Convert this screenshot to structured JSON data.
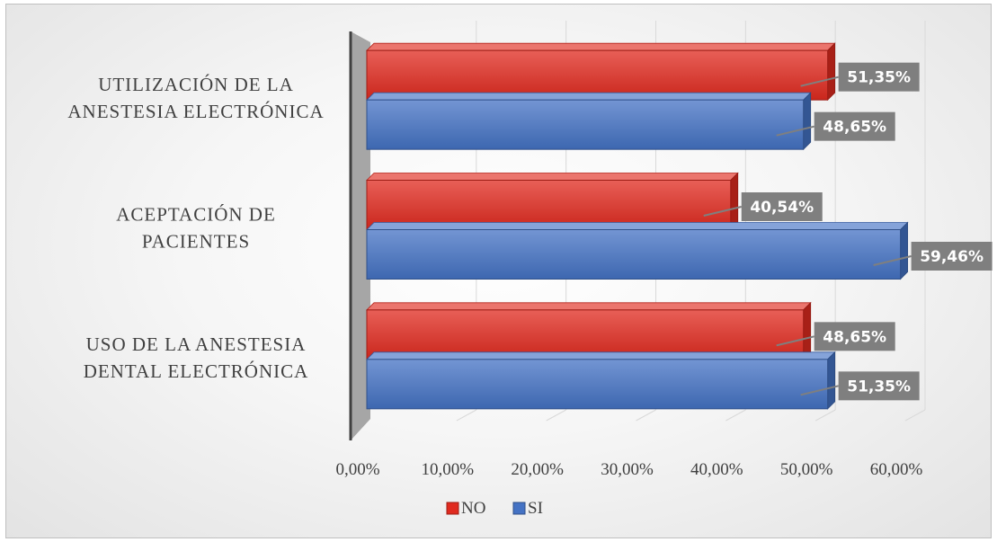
{
  "chart_data": {
    "type": "bar",
    "orientation": "horizontal",
    "style": "3d",
    "categories": [
      "USO DE LA ANESTESIA DENTAL ELECTRÓNICA",
      "ACEPTACIÓN DE PACIENTES",
      "UTILIZACIÓN DE LA ANESTESIA ELECTRÓNICA"
    ],
    "category_lines": [
      [
        "USO DE LA ANESTESIA",
        "DENTAL ELECTRÓNICA"
      ],
      [
        "ACEPTACIÓN DE",
        "PACIENTES"
      ],
      [
        "UTILIZACIÓN DE LA",
        "ANESTESIA ELECTRÓNICA"
      ]
    ],
    "series": [
      {
        "name": "NO",
        "color": "#e02a1f",
        "values": [
          48.65,
          40.54,
          51.35
        ],
        "labels": [
          "48,65%",
          "40,54%",
          "51,35%"
        ]
      },
      {
        "name": "SI",
        "color": "#4472c4",
        "values": [
          51.35,
          59.46,
          48.65
        ],
        "labels": [
          "51,35%",
          "59,46%",
          "48,65%"
        ]
      }
    ],
    "xlim": [
      0,
      60
    ],
    "x_ticks": [
      "0,00%",
      "10,00%",
      "20,00%",
      "30,00%",
      "40,00%",
      "50,00%",
      "60,00%"
    ],
    "legend_position": "bottom",
    "data_label_bg": "#7f7f7f",
    "grid": true
  }
}
